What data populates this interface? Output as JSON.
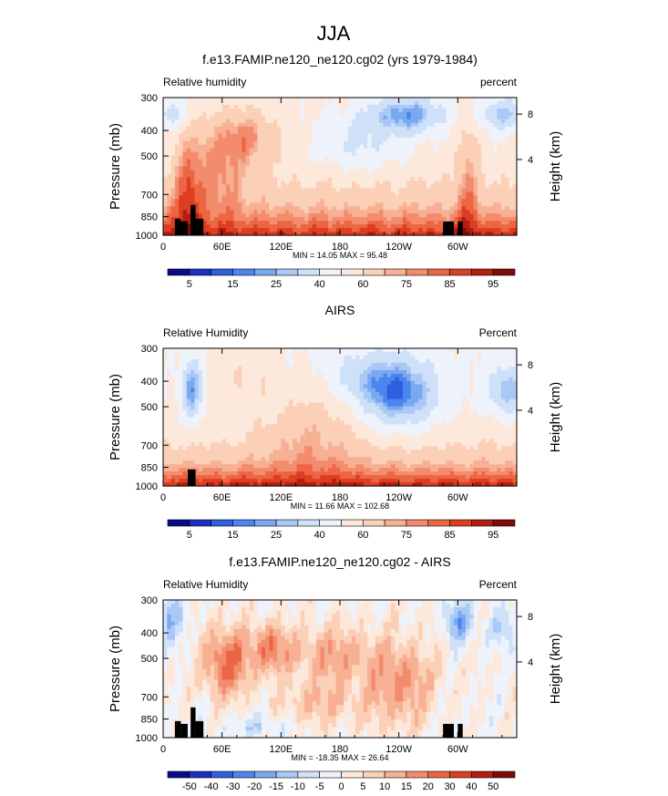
{
  "figure_title": "JJA",
  "colors": {
    "rh_scale": [
      "#0b0b8a",
      "#1a2fc4",
      "#2f5ee0",
      "#4a86ee",
      "#7aa9f2",
      "#a9c8f6",
      "#cfe0f9",
      "#eef2fb",
      "#fde8dc",
      "#fbd0b7",
      "#f7b093",
      "#f38c6c",
      "#ec6645",
      "#dd3e22",
      "#b21e10",
      "#7e0b06"
    ],
    "diff_scale": [
      "#0b0b8a",
      "#1a2fc4",
      "#2f5ee0",
      "#4a86ee",
      "#7aa9f2",
      "#a9c8f6",
      "#cfe0f9",
      "#eef2fb",
      "#fde8dc",
      "#fbd0b7",
      "#f7b093",
      "#f38c6c",
      "#ec6645",
      "#dd3e22",
      "#b21e10",
      "#7e0b06"
    ],
    "topography": "#000000"
  },
  "chart_data": [
    {
      "type": "heatmap",
      "title": "f.e13.FAMIP.ne120_ne120.cg02 (yrs 1979-1984)",
      "left_label": "Relative humidity",
      "right_label": "percent",
      "ylabel": "Pressure (mb)",
      "ylabel_right": "Height (km)",
      "xticks": [
        "0",
        "60E",
        "120E",
        "180",
        "120W",
        "60W"
      ],
      "yticks": [
        "300",
        "400",
        "500",
        "700",
        "850",
        "1000"
      ],
      "yticks_right": [
        "8",
        "4"
      ],
      "xlim": [
        0,
        360
      ],
      "ylim": [
        1000,
        300
      ],
      "stats": "MIN =   14.05   MAX =   95.48",
      "colorbar_labels": [
        "5",
        "15",
        "25",
        "40",
        "60",
        "75",
        "85",
        "95"
      ],
      "colorbar_levels": 16,
      "field": "model"
    },
    {
      "type": "heatmap",
      "title": "AIRS",
      "left_label": "Relative Humidity",
      "right_label": "Percent",
      "ylabel": "Pressure (mb)",
      "ylabel_right": "Height (km)",
      "xticks": [
        "0",
        "60E",
        "120E",
        "180",
        "120W",
        "60W"
      ],
      "yticks": [
        "300",
        "400",
        "500",
        "700",
        "850",
        "1000"
      ],
      "yticks_right": [
        "8",
        "4"
      ],
      "xlim": [
        0,
        360
      ],
      "ylim": [
        1000,
        300
      ],
      "stats": "MIN =   11.66   MAX =  102.68",
      "colorbar_labels": [
        "5",
        "15",
        "25",
        "40",
        "60",
        "75",
        "85",
        "95"
      ],
      "colorbar_levels": 16,
      "field": "obs"
    },
    {
      "type": "heatmap",
      "title": "f.e13.FAMIP.ne120_ne120.cg02 - AIRS",
      "left_label": "Relative Humidity",
      "right_label": "Percent",
      "ylabel": "Pressure (mb)",
      "ylabel_right": "Height (km)",
      "xticks": [
        "0",
        "60E",
        "120E",
        "180",
        "120W",
        "60W"
      ],
      "yticks": [
        "300",
        "400",
        "500",
        "700",
        "850",
        "1000"
      ],
      "yticks_right": [
        "8",
        "4"
      ],
      "xlim": [
        0,
        360
      ],
      "ylim": [
        1000,
        300
      ],
      "stats": "MIN =  -18.35   MAX =   26.64",
      "colorbar_labels": [
        "-50",
        "-40",
        "-30",
        "-20",
        "-15",
        "-10",
        "-5",
        "0",
        "5",
        "10",
        "15",
        "20",
        "30",
        "40",
        "50"
      ],
      "colorbar_levels": 16,
      "field": "diff"
    }
  ]
}
